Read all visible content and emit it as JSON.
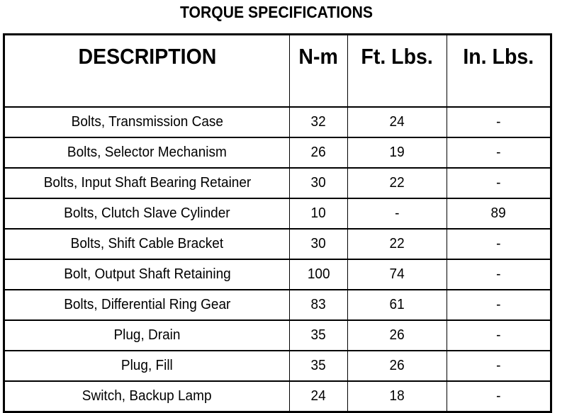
{
  "title": "TORQUE SPECIFICATIONS",
  "headers": [
    "DESCRIPTION",
    "N-m",
    "Ft. Lbs.",
    "In. Lbs."
  ],
  "rows": [
    [
      "Bolts, Transmission Case",
      "32",
      "24",
      "-"
    ],
    [
      "Bolts, Selector Mechanism",
      "26",
      "19",
      "-"
    ],
    [
      "Bolts, Input Shaft Bearing Retainer",
      "30",
      "22",
      "-"
    ],
    [
      "Bolts, Clutch Slave Cylinder",
      "10",
      "-",
      "89"
    ],
    [
      "Bolts, Shift Cable Bracket",
      "30",
      "22",
      "-"
    ],
    [
      "Bolt, Output Shaft Retaining",
      "100",
      "74",
      "-"
    ],
    [
      "Bolts, Differential Ring Gear",
      "83",
      "61",
      "-"
    ],
    [
      "Plug, Drain",
      "35",
      "26",
      "-"
    ],
    [
      "Plug, Fill",
      "35",
      "26",
      "-"
    ],
    [
      "Switch, Backup Lamp",
      "24",
      "18",
      "-"
    ]
  ]
}
